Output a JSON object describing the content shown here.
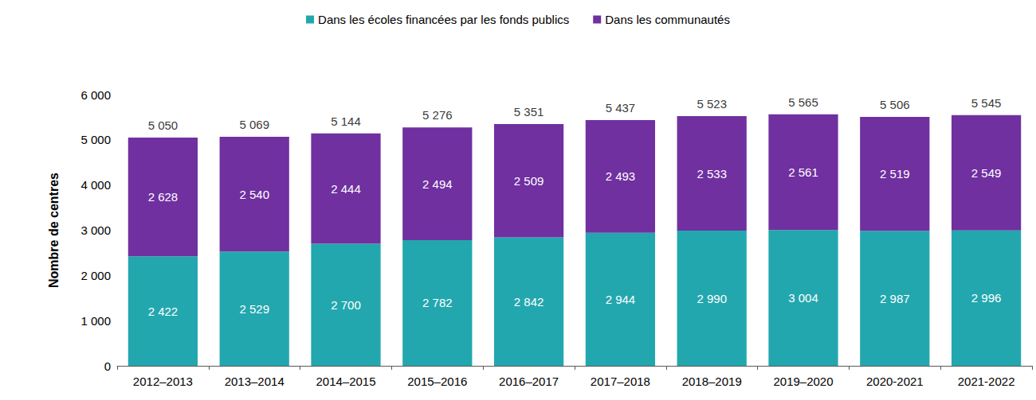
{
  "chart_data": {
    "type": "bar",
    "stacked": true,
    "data_labels": true,
    "grid": false,
    "legend": "top",
    "ylabel": "Nombre de centres",
    "categories": [
      "2012–2013",
      "2013–2014",
      "2014–2015",
      "2015–2016",
      "2016–2017",
      "2017–2018",
      "2018–2019",
      "2019–2020",
      "2020-2021",
      "2021-2022"
    ],
    "series": [
      {
        "name": "Dans les écoles financées par les fonds publics",
        "color": "#23a7ae",
        "values": [
          2422,
          2529,
          2700,
          2782,
          2842,
          2944,
          2990,
          3004,
          2987,
          2996
        ],
        "value_labels": [
          "2 422",
          "2 529",
          "2 700",
          "2 782",
          "2 842",
          "2 944",
          "2 990",
          "3 004",
          "2 987",
          "2 996"
        ]
      },
      {
        "name": "Dans les communautés",
        "color": "#7030a0",
        "values": [
          2628,
          2540,
          2444,
          2494,
          2509,
          2493,
          2533,
          2561,
          2519,
          2549
        ],
        "value_labels": [
          "2 628",
          "2 540",
          "2 444",
          "2 494",
          "2 509",
          "2 493",
          "2 533",
          "2 561",
          "2 519",
          "2 549"
        ]
      }
    ],
    "totals": [
      5050,
      5069,
      5144,
      5276,
      5351,
      5437,
      5523,
      5565,
      5506,
      5545
    ],
    "total_labels": [
      "5 050",
      "5 069",
      "5 144",
      "5 276",
      "5 351",
      "5 437",
      "5 523",
      "5 565",
      "5 506",
      "5 545"
    ],
    "ylim": [
      0,
      6000
    ],
    "yticks": [
      0,
      {
        "value": 1000,
        "label": "1 000"
      },
      {
        "value": 2000,
        "label": "2 000"
      },
      {
        "value": 3000,
        "label": "3 000"
      },
      {
        "value": 4000,
        "label": "4 000"
      },
      {
        "value": 5000,
        "label": "5 000"
      },
      {
        "value": 6000,
        "label": "6 000"
      }
    ]
  }
}
